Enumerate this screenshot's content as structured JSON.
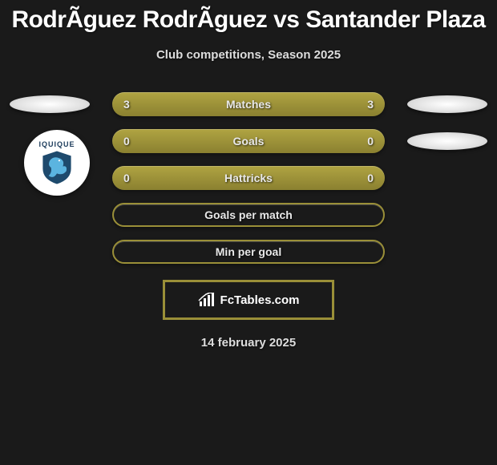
{
  "title": "RodrÃ­guez RodrÃ­guez vs Santander Plaza",
  "subtitle": "Club competitions, Season 2025",
  "colors": {
    "background": "#1a1a1a",
    "bar_fill_top": "#b0a442",
    "bar_fill_bottom": "#8a8030",
    "bar_border": "#9a8f38",
    "text": "#e8e8e8",
    "badge_bg": "#ffffff",
    "badge_text": "#1a3a5a",
    "dragon_fill": "#5bb4e0",
    "shield_fill": "#1e4a6d"
  },
  "rows": [
    {
      "label": "Matches",
      "left": "3",
      "right": "3",
      "style": "filled",
      "leftEllipse": true,
      "rightEllipse": true
    },
    {
      "label": "Goals",
      "left": "0",
      "right": "0",
      "style": "filled",
      "leftEllipse": false,
      "rightEllipse": true
    },
    {
      "label": "Hattricks",
      "left": "0",
      "right": "0",
      "style": "filled",
      "leftEllipse": false,
      "rightEllipse": false
    },
    {
      "label": "Goals per match",
      "left": "",
      "right": "",
      "style": "outline",
      "leftEllipse": false,
      "rightEllipse": false
    },
    {
      "label": "Min per goal",
      "left": "",
      "right": "",
      "style": "outline",
      "leftEllipse": false,
      "rightEllipse": false
    }
  ],
  "badge": {
    "text": "IQUIQUE"
  },
  "branding": "FcTables.com",
  "date": "14 february 2025"
}
